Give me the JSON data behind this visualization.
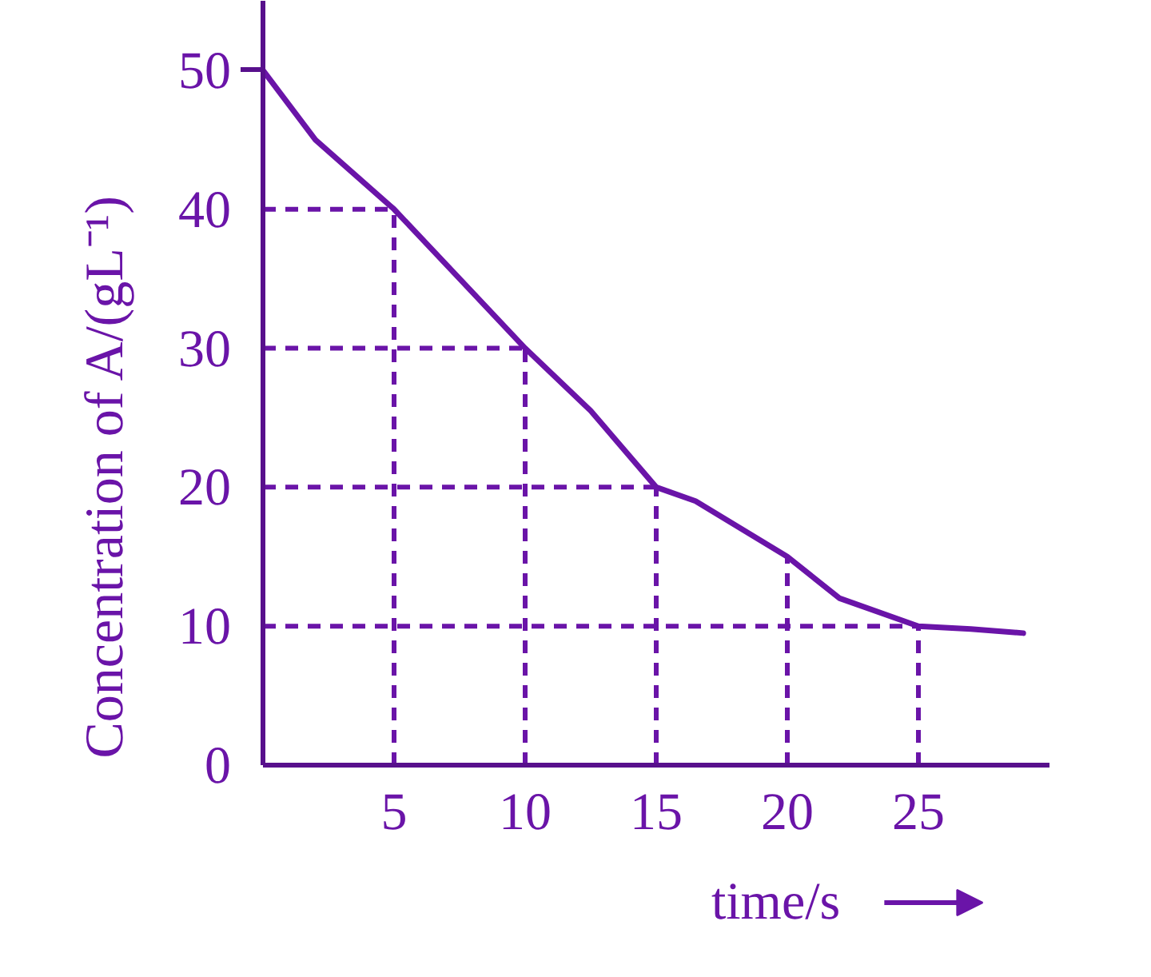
{
  "chart_data": {
    "type": "line",
    "xlabel": "time/s",
    "ylabel": "Concentration of A/(gL⁻¹)",
    "x": [
      0,
      2,
      5,
      7.5,
      10,
      12.5,
      15,
      16.5,
      20,
      22,
      25,
      27,
      29
    ],
    "series": [
      {
        "color": "#6a14a8",
        "values": [
          50,
          45,
          40,
          35,
          30,
          25.5,
          20,
          19,
          15,
          12,
          10,
          9.8,
          9.5
        ]
      }
    ],
    "xlim": [
      0,
      30
    ],
    "ylim": [
      0,
      55
    ],
    "xticks": [
      5,
      10,
      15,
      20,
      25
    ],
    "yticks": [
      0,
      10,
      20,
      30,
      40,
      50
    ],
    "ref_lines": [
      {
        "axis": "x",
        "value": 5,
        "line_style": "dashed",
        "color": "#6a14a8"
      },
      {
        "axis": "x",
        "value": 10,
        "line_style": "dashed",
        "color": "#6a14a8"
      },
      {
        "axis": "x",
        "value": 15,
        "line_style": "dashed",
        "color": "#6a14a8"
      },
      {
        "axis": "x",
        "value": 20,
        "line_style": "dashed",
        "color": "#6a14a8"
      },
      {
        "axis": "x",
        "value": 25,
        "line_style": "dashed",
        "color": "#6a14a8"
      },
      {
        "axis": "y",
        "value": 40,
        "line_style": "dashed",
        "color": "#6a14a8"
      },
      {
        "axis": "y",
        "value": 30,
        "line_style": "dashed",
        "color": "#6a14a8"
      },
      {
        "axis": "y",
        "value": 20,
        "line_style": "dashed",
        "color": "#6a14a8"
      },
      {
        "axis": "y",
        "value": 10,
        "line_style": "dashed",
        "color": "#6a14a8"
      }
    ]
  }
}
